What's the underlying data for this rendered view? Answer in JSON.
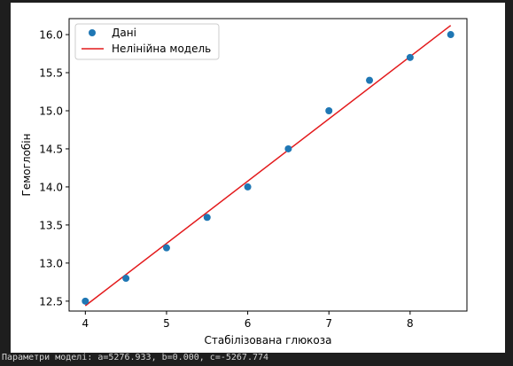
{
  "chart_data": {
    "type": "scatter",
    "xlabel": "Стабілізована глюкоза",
    "ylabel": "Гемоглобін",
    "xlim": [
      3.8,
      8.7
    ],
    "ylim": [
      12.37,
      16.21
    ],
    "x_ticks": [
      "4",
      "5",
      "6",
      "7",
      "8"
    ],
    "y_ticks": [
      "12.5",
      "13.0",
      "13.5",
      "14.0",
      "14.5",
      "15.0",
      "15.5",
      "16.0"
    ],
    "grid": false,
    "legend_position": "top-left",
    "series": [
      {
        "name": "Дані",
        "kind": "scatter",
        "color": "#1f77b4",
        "x": [
          4.0,
          4.5,
          5.0,
          5.5,
          6.0,
          6.5,
          7.0,
          7.5,
          8.0,
          8.5
        ],
        "y": [
          12.5,
          12.8,
          13.2,
          13.6,
          14.0,
          14.5,
          15.0,
          15.4,
          15.7,
          16.0
        ]
      },
      {
        "name": "Нелінійна модель",
        "kind": "line",
        "color": "#e31a1c",
        "x": [
          4.0,
          8.5
        ],
        "y": [
          12.44,
          16.12
        ]
      }
    ]
  },
  "output": {
    "text": "Параметри моделі: a=5276.933, b=0.000, c=-5267.774"
  }
}
